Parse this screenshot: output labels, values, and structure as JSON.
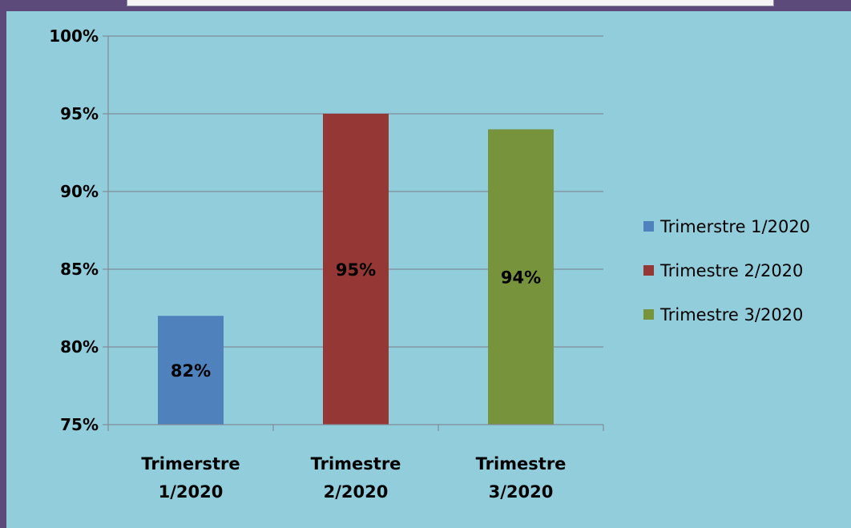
{
  "chart_data": {
    "type": "bar",
    "categories": [
      "Trimerstre 1/2020",
      "Trimestre 2/2020",
      "Trimestre 3/2020"
    ],
    "category_label_lines": [
      [
        "Trimerstre",
        "1/2020"
      ],
      [
        "Trimestre",
        "2/2020"
      ],
      [
        "Trimestre",
        "3/2020"
      ]
    ],
    "values": [
      82,
      95,
      94
    ],
    "data_labels": [
      "82%",
      "95%",
      "94%"
    ],
    "colors": [
      "#4f81bd",
      "#953735",
      "#77933c"
    ],
    "ylim": [
      75,
      100
    ],
    "yticks": [
      75,
      80,
      85,
      90,
      95,
      100
    ],
    "ytick_labels": [
      "75%",
      "80%",
      "85%",
      "90%",
      "95%",
      "100%"
    ],
    "legend": {
      "placement": "right",
      "entries": [
        "Trimerstre 1/2020",
        "Trimestre 2/2020",
        "Trimestre 3/2020"
      ]
    },
    "grid": true,
    "title": "",
    "xlabel": "",
    "ylabel": ""
  }
}
